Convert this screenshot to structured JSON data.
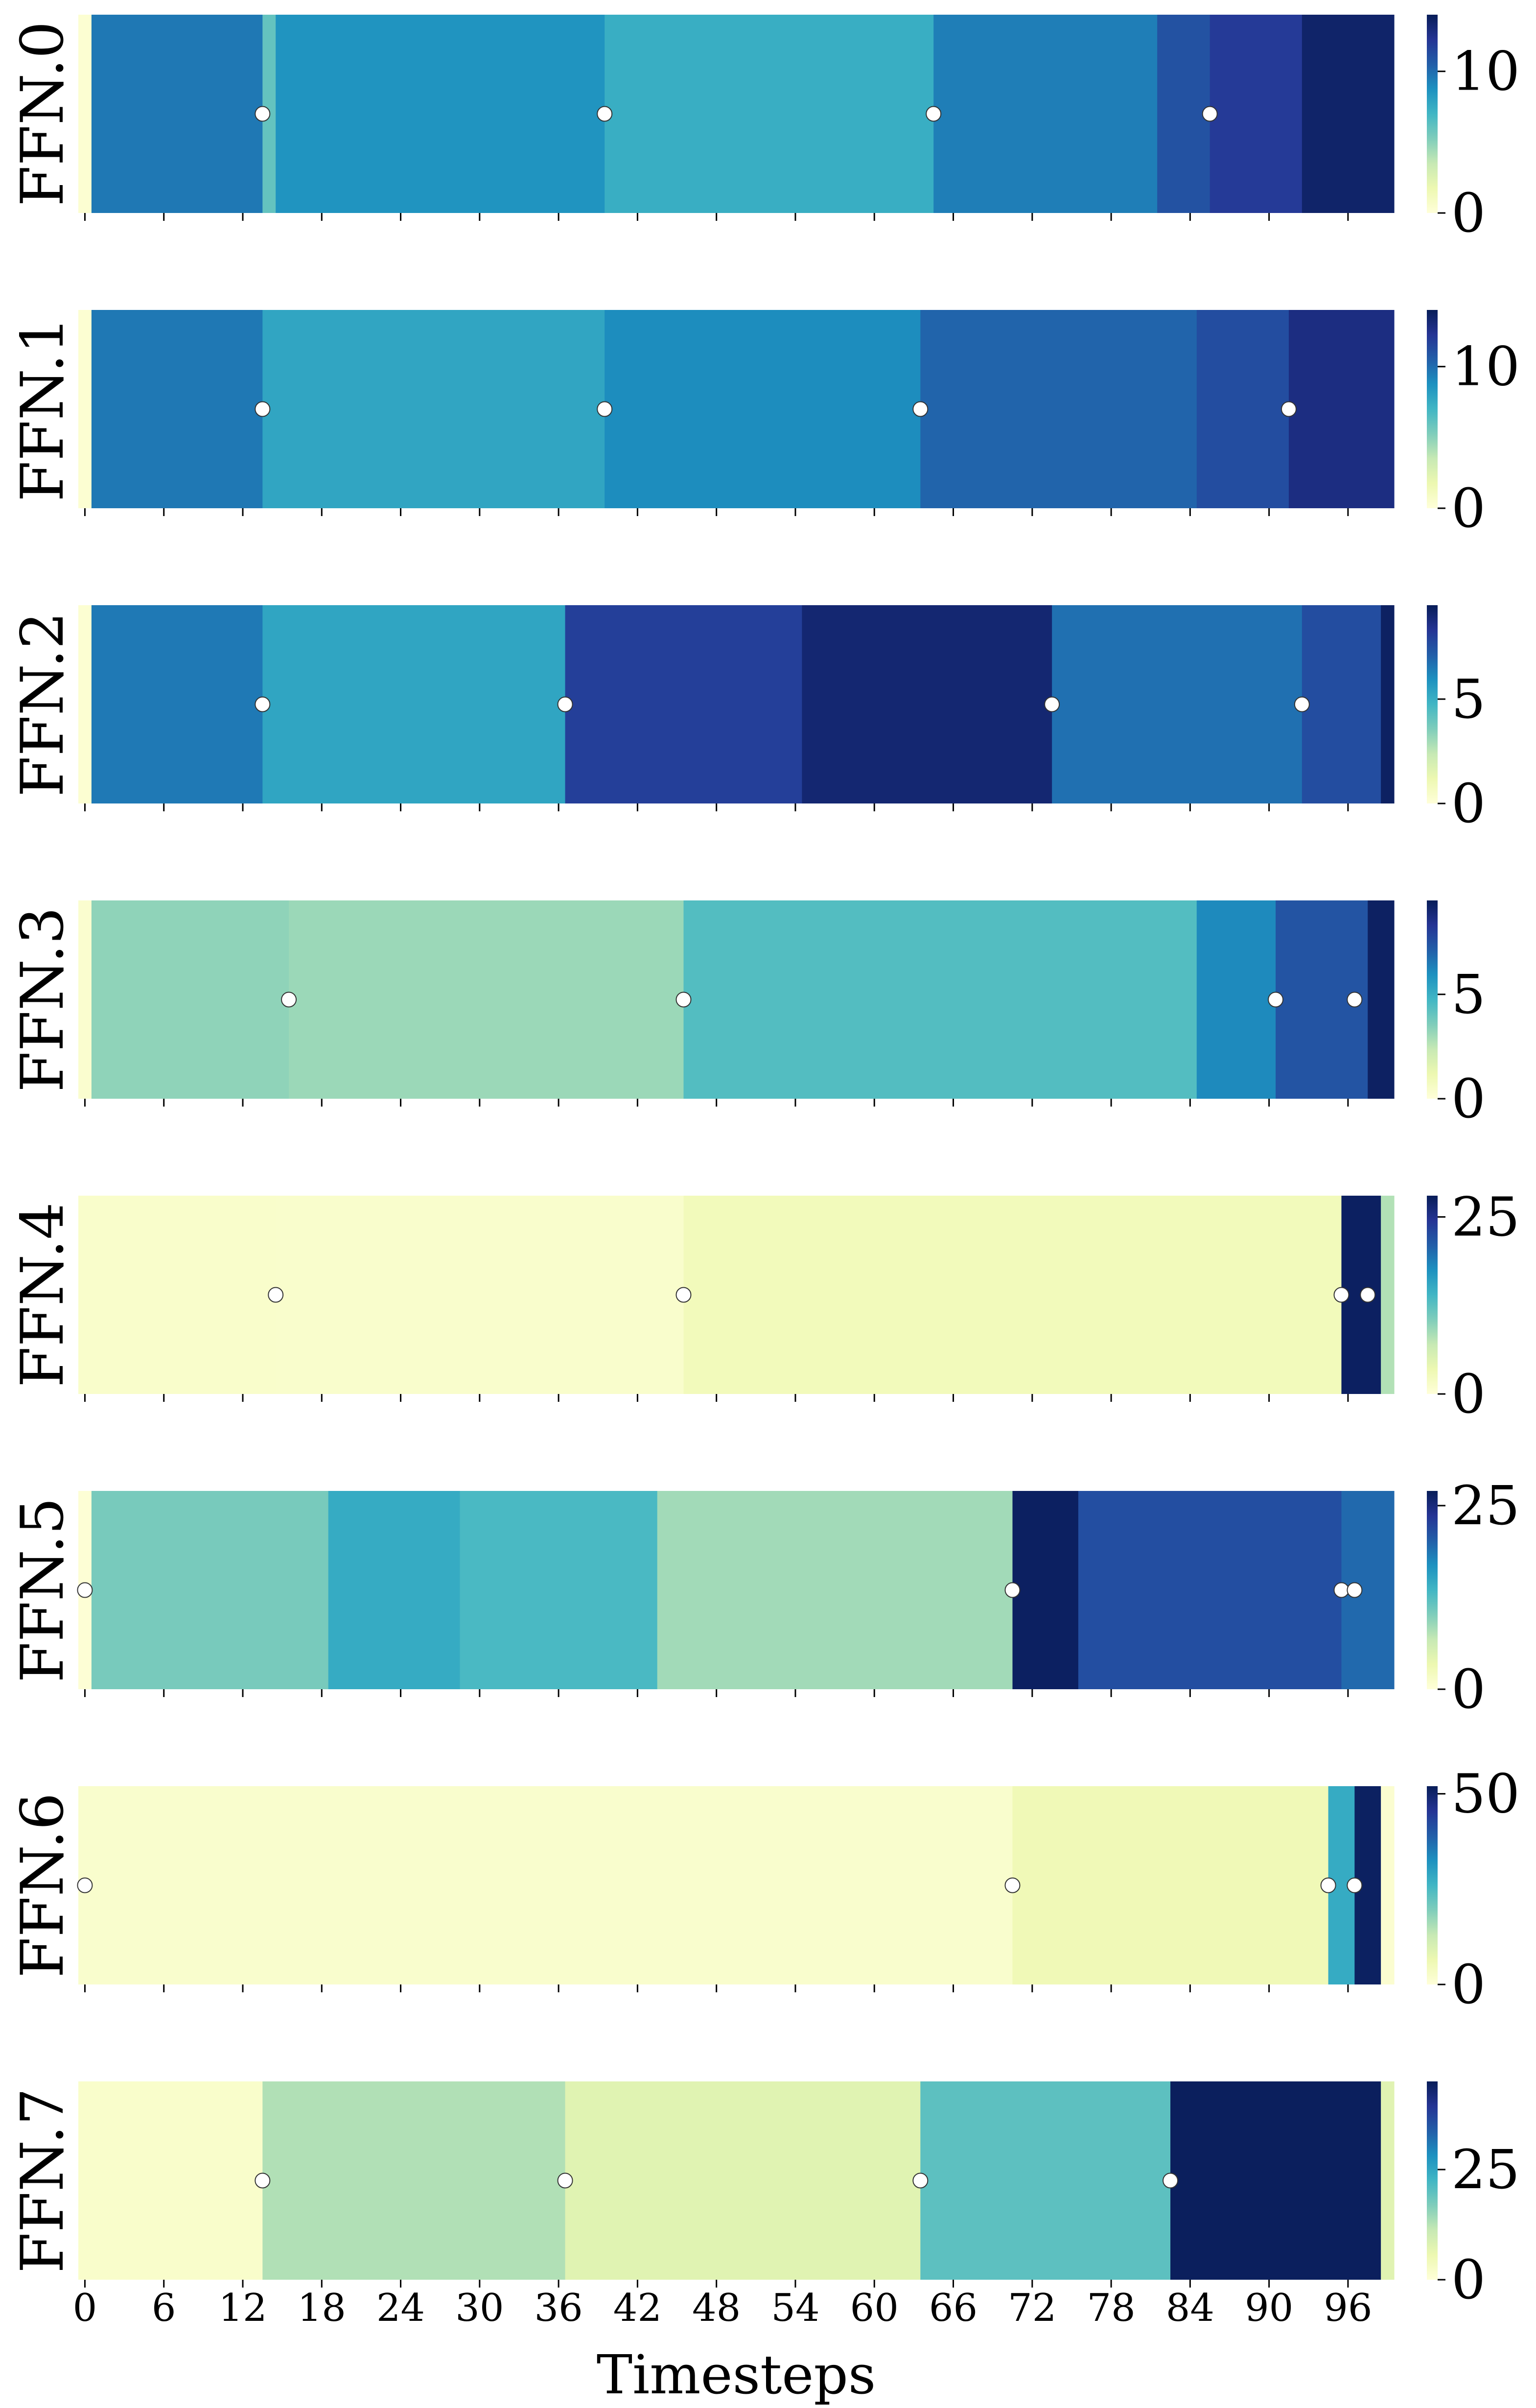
{
  "chart_data": {
    "type": "heatmap",
    "title": "",
    "xlabel": "Timesteps",
    "x_range": [
      0,
      99
    ],
    "x_ticks": [
      0,
      6,
      12,
      18,
      24,
      30,
      36,
      42,
      48,
      54,
      60,
      66,
      72,
      78,
      84,
      90,
      96
    ],
    "x_tick_labels": [
      "0",
      "6",
      "12",
      "18",
      "24",
      "30",
      "36",
      "42",
      "48",
      "54",
      "60",
      "66",
      "72",
      "78",
      "84",
      "90",
      "96"
    ],
    "colormap": {
      "name": "YlGnBu",
      "stops": [
        "#ffffd9",
        "#edf8b1",
        "#c7e9b4",
        "#7fcdbb",
        "#41b6c4",
        "#1d91c0",
        "#225ea8",
        "#253494",
        "#081d58"
      ]
    },
    "marker_color": "#ffffff",
    "panels": [
      {
        "label": "FFN.0",
        "vmax": 14,
        "colorbar_ticks": [
          0,
          10
        ],
        "colorbar_tick_labels": [
          "0",
          "10"
        ],
        "segments": [
          {
            "start": 0,
            "end": 1,
            "value": 0.3
          },
          {
            "start": 1,
            "end": 14,
            "value": 9.6
          },
          {
            "start": 14,
            "end": 15,
            "value": 6.0
          },
          {
            "start": 15,
            "end": 40,
            "value": 8.6
          },
          {
            "start": 40,
            "end": 65,
            "value": 7.4
          },
          {
            "start": 65,
            "end": 82,
            "value": 9.4
          },
          {
            "start": 82,
            "end": 86,
            "value": 11.0
          },
          {
            "start": 86,
            "end": 93,
            "value": 12.0
          },
          {
            "start": 93,
            "end": 100,
            "value": 13.5
          }
        ],
        "markers": [
          14,
          40,
          65,
          86
        ]
      },
      {
        "label": "FFN.1",
        "vmax": 14,
        "colorbar_ticks": [
          0,
          10
        ],
        "colorbar_tick_labels": [
          "0",
          "10"
        ],
        "segments": [
          {
            "start": 0,
            "end": 1,
            "value": 0.3
          },
          {
            "start": 1,
            "end": 14,
            "value": 9.6
          },
          {
            "start": 14,
            "end": 40,
            "value": 7.8
          },
          {
            "start": 40,
            "end": 64,
            "value": 8.9
          },
          {
            "start": 64,
            "end": 85,
            "value": 10.3
          },
          {
            "start": 85,
            "end": 92,
            "value": 11.2
          },
          {
            "start": 92,
            "end": 100,
            "value": 12.8
          }
        ],
        "markers": [
          14,
          40,
          64,
          92
        ]
      },
      {
        "label": "FFN.2",
        "vmax": 9.5,
        "colorbar_ticks": [
          0,
          5
        ],
        "colorbar_tick_labels": [
          "0",
          "5"
        ],
        "segments": [
          {
            "start": 0,
            "end": 1,
            "value": 0.2
          },
          {
            "start": 1,
            "end": 14,
            "value": 6.5
          },
          {
            "start": 14,
            "end": 37,
            "value": 5.3
          },
          {
            "start": 37,
            "end": 55,
            "value": 8.0
          },
          {
            "start": 55,
            "end": 74,
            "value": 9.0
          },
          {
            "start": 74,
            "end": 93,
            "value": 6.7
          },
          {
            "start": 93,
            "end": 99,
            "value": 7.6
          },
          {
            "start": 99,
            "end": 100,
            "value": 9.3
          }
        ],
        "markers": [
          14,
          37,
          74,
          93
        ]
      },
      {
        "label": "FFN.3",
        "vmax": 9.5,
        "colorbar_ticks": [
          0,
          5
        ],
        "colorbar_tick_labels": [
          "0",
          "5"
        ],
        "segments": [
          {
            "start": 0,
            "end": 1,
            "value": 0.3
          },
          {
            "start": 1,
            "end": 16,
            "value": 3.3
          },
          {
            "start": 16,
            "end": 46,
            "value": 3.1
          },
          {
            "start": 46,
            "end": 85,
            "value": 4.4
          },
          {
            "start": 85,
            "end": 91,
            "value": 6.1
          },
          {
            "start": 91,
            "end": 98,
            "value": 7.4
          },
          {
            "start": 98,
            "end": 100,
            "value": 9.3
          }
        ],
        "markers": [
          16,
          46,
          91,
          97
        ]
      },
      {
        "label": "FFN.4",
        "vmax": 28,
        "colorbar_ticks": [
          0,
          25
        ],
        "colorbar_tick_labels": [
          "0",
          "25"
        ],
        "segments": [
          {
            "start": 0,
            "end": 15,
            "value": 1.2
          },
          {
            "start": 15,
            "end": 46,
            "value": 1.1
          },
          {
            "start": 46,
            "end": 96,
            "value": 2.6
          },
          {
            "start": 96,
            "end": 99,
            "value": 27.5
          },
          {
            "start": 99,
            "end": 100,
            "value": 8.0
          }
        ],
        "markers": [
          15,
          46,
          96,
          98
        ]
      },
      {
        "label": "FFN.5",
        "vmax": 27,
        "colorbar_ticks": [
          0,
          25
        ],
        "colorbar_tick_labels": [
          "0",
          "25"
        ],
        "segments": [
          {
            "start": 0,
            "end": 1,
            "value": 0.3
          },
          {
            "start": 1,
            "end": 19,
            "value": 10.5
          },
          {
            "start": 19,
            "end": 29,
            "value": 14.5
          },
          {
            "start": 29,
            "end": 44,
            "value": 13.0
          },
          {
            "start": 44,
            "end": 71,
            "value": 8.5
          },
          {
            "start": 71,
            "end": 76,
            "value": 26.5
          },
          {
            "start": 76,
            "end": 96,
            "value": 21.5
          },
          {
            "start": 96,
            "end": 100,
            "value": 19.5
          }
        ],
        "markers": [
          0.5,
          71,
          96,
          97
        ]
      },
      {
        "label": "FFN.6",
        "vmax": 52,
        "colorbar_ticks": [
          0,
          50
        ],
        "colorbar_tick_labels": [
          "0",
          "50"
        ],
        "segments": [
          {
            "start": 0,
            "end": 71,
            "value": 2.0
          },
          {
            "start": 71,
            "end": 95,
            "value": 5.5
          },
          {
            "start": 95,
            "end": 97,
            "value": 28.0
          },
          {
            "start": 97,
            "end": 99,
            "value": 51.0
          },
          {
            "start": 99,
            "end": 100,
            "value": 1.5
          }
        ],
        "markers": [
          0.5,
          71,
          95,
          97
        ]
      },
      {
        "label": "FFN.7",
        "vmax": 45,
        "colorbar_ticks": [
          0,
          25
        ],
        "colorbar_tick_labels": [
          "0",
          "25"
        ],
        "segments": [
          {
            "start": 0,
            "end": 14,
            "value": 2.0
          },
          {
            "start": 14,
            "end": 37,
            "value": 13.0
          },
          {
            "start": 37,
            "end": 64,
            "value": 7.5
          },
          {
            "start": 64,
            "end": 83,
            "value": 20.0
          },
          {
            "start": 83,
            "end": 99,
            "value": 44.5
          },
          {
            "start": 99,
            "end": 100,
            "value": 7.5
          }
        ],
        "markers": [
          14,
          37,
          64,
          83
        ]
      }
    ]
  }
}
